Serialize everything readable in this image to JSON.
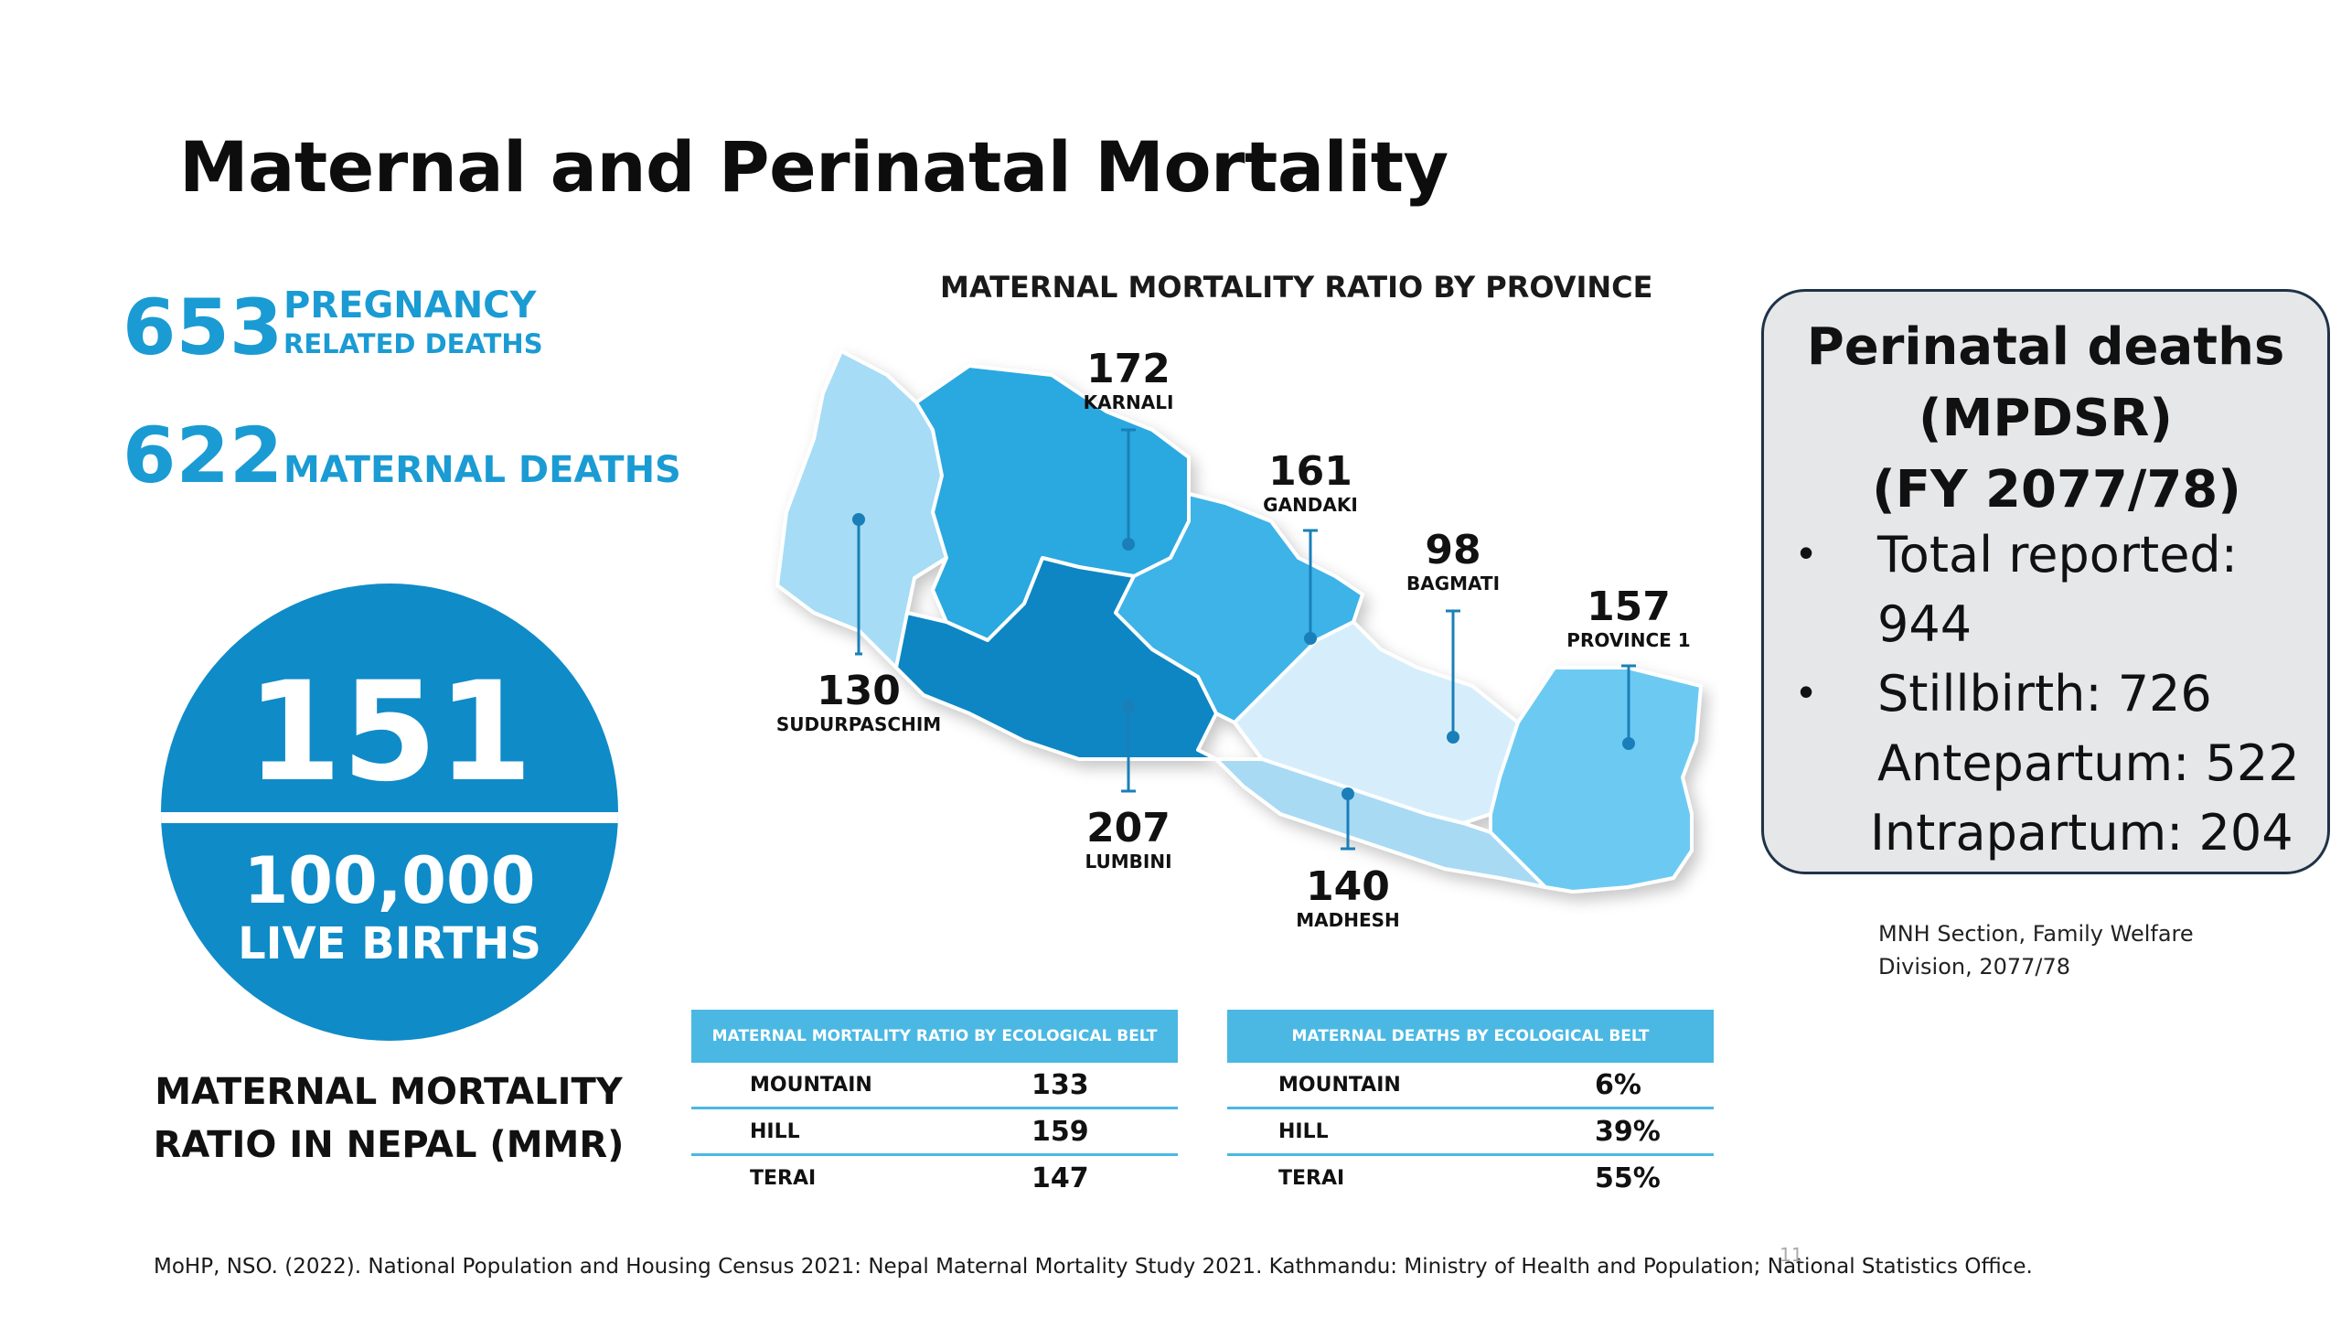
{
  "slide": {
    "title": "Maternal and Perinatal Mortality",
    "page_number": "11"
  },
  "stats": {
    "pregnancy_deaths_value": "653",
    "pregnancy_deaths_line1": "PREGNANCY",
    "pregnancy_deaths_line2": "RELATED DEATHS",
    "maternal_deaths_value": "622",
    "maternal_deaths_label": "MATERNAL DEATHS"
  },
  "mmr": {
    "value": "151",
    "denominator": "100,000",
    "denominator_unit": "LIVE BIRTHS",
    "caption_line1": "MATERNAL MORTALITY",
    "caption_line2": "RATIO IN NEPAL (MMR)"
  },
  "map": {
    "title": "MATERNAL MORTALITY RATIO BY PROVINCE",
    "provinces": [
      {
        "name": "KARNALI",
        "value": "172"
      },
      {
        "name": "GANDAKI",
        "value": "161"
      },
      {
        "name": "BAGMATI",
        "value": "98"
      },
      {
        "name": "PROVINCE 1",
        "value": "157"
      },
      {
        "name": "SUDURPASCHIM",
        "value": "130"
      },
      {
        "name": "LUMBINI",
        "value": "207"
      },
      {
        "name": "MADHESH",
        "value": "140"
      }
    ],
    "colors": {
      "sudurpaschim": "#a6dcf5",
      "karnali": "#2aa8e0",
      "lumbini": "#0f86c3",
      "gandaki": "#3eb3e8",
      "bagmati": "#d6eefb",
      "madhesh": "#a8daf4",
      "province1": "#6ccaf2"
    }
  },
  "table_mmr_belt": {
    "header": "MATERNAL MORTALITY RATIO BY ECOLOGICAL BELT",
    "rows": [
      {
        "belt": "MOUNTAIN",
        "value": "133"
      },
      {
        "belt": "HILL",
        "value": "159"
      },
      {
        "belt": "TERAI",
        "value": "147"
      }
    ]
  },
  "table_deaths_belt": {
    "header": "MATERNAL DEATHS BY ECOLOGICAL BELT",
    "rows": [
      {
        "belt": "MOUNTAIN",
        "value": "6%"
      },
      {
        "belt": "HILL",
        "value": "39%"
      },
      {
        "belt": "TERAI",
        "value": "55%"
      }
    ]
  },
  "perinatal": {
    "title_line1": "Perinatal deaths",
    "title_line2": "(MPDSR)",
    "title_line3": "(FY 2077/78)",
    "total_label": "Total reported:",
    "total_value": "944",
    "stillbirth": "Stillbirth: 726",
    "antepartum": "Antepartum: 522",
    "intrapartum": "Intrapartum: 204",
    "bullet_char": "•"
  },
  "sources": {
    "perinatal_source_line1": "MNH Section, Family Welfare",
    "perinatal_source_line2": "Division, 2077/78",
    "footer": "MoHP, NSO. (2022). National Population and Housing Census 2021: Nepal Maternal Mortality Study 2021. Kathmandu: Ministry of Health and Population; National Statistics Office."
  },
  "accent_color": "#1a9bd3"
}
